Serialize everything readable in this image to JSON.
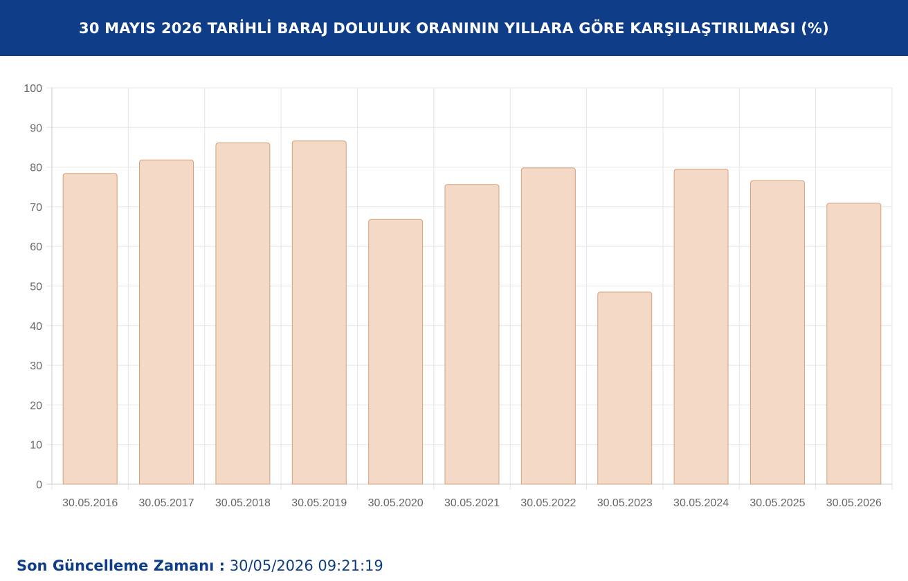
{
  "header": {
    "title": "30 MAYIS 2026 TARİHLİ BARAJ DOLULUK ORANININ YILLARA GÖRE KARŞILAŞTIRILMASI (%)"
  },
  "footer": {
    "label": "Son Güncelleme Zamanı :",
    "value": "30/05/2026 09:21:19"
  },
  "colors": {
    "header_bg": "#0f3d87",
    "bar_fill": "#f3d9c6",
    "bar_stroke": "#d4a27c",
    "grid": "#e5e5e5",
    "tick_text": "#666666"
  },
  "chart_data": {
    "type": "bar",
    "title": "30 MAYIS 2026 TARİHLİ BARAJ DOLULUK ORANININ YILLARA GÖRE KARŞILAŞTIRILMASI (%)",
    "xlabel": "",
    "ylabel": "",
    "categories": [
      "30.05.2016",
      "30.05.2017",
      "30.05.2018",
      "30.05.2019",
      "30.05.2020",
      "30.05.2021",
      "30.05.2022",
      "30.05.2023",
      "30.05.2024",
      "30.05.2025",
      "30.05.2026"
    ],
    "values": [
      78.4,
      81.8,
      86.1,
      86.6,
      66.8,
      75.6,
      79.8,
      48.5,
      79.5,
      76.6,
      70.9
    ],
    "ylim": [
      0,
      100
    ],
    "yticks": [
      0,
      10,
      20,
      30,
      40,
      50,
      60,
      70,
      80,
      90,
      100
    ],
    "grid": true,
    "legend": "none"
  }
}
